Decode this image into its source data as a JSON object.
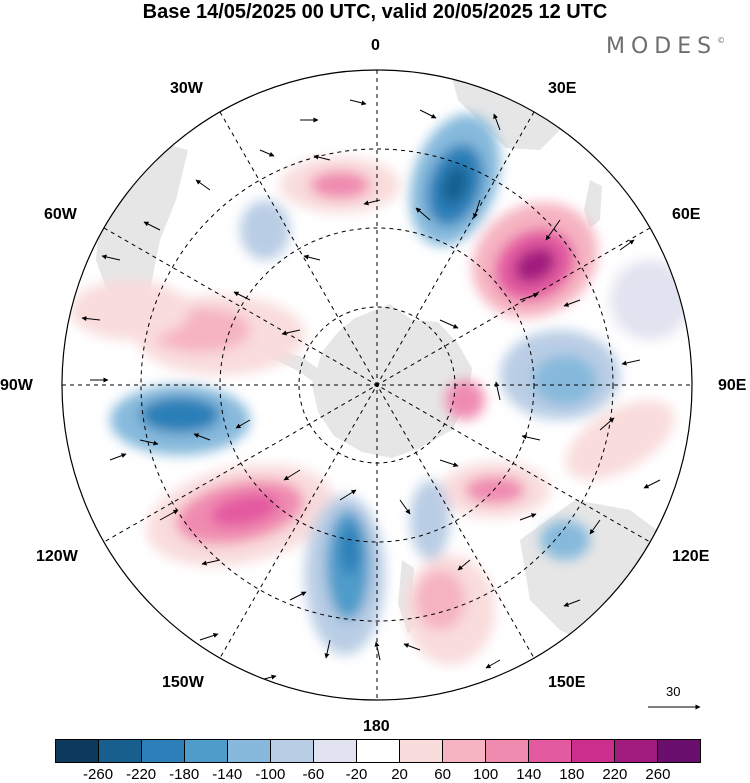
{
  "title": "Base 14/05/2025 00 UTC, valid 20/05/2025 12 UTC",
  "brand": "MODES",
  "brand_mark": "©",
  "map": {
    "projection": "south-polar-stereographic",
    "longitude_labels": {
      "top": "0",
      "bottom": "180",
      "left": "90W",
      "right": "90E",
      "upper_left": "30W",
      "upper_right": "30E",
      "left_upper": "60W",
      "right_upper": "60E",
      "left_lower": "120W",
      "right_lower": "120E",
      "lower_left": "150W",
      "lower_right": "150E"
    },
    "reference_vector_label": "30",
    "anomaly_centers": [
      {
        "sign": "negative",
        "lon_label": "~20E",
        "level": "-220"
      },
      {
        "sign": "positive",
        "lon_label": "~50E",
        "level": "220"
      },
      {
        "sign": "positive",
        "lon_label": "~10W",
        "level": "100"
      },
      {
        "sign": "positive",
        "lon_label": "~80W",
        "level": "100"
      },
      {
        "sign": "negative",
        "lon_label": "~100W",
        "level": "-220"
      },
      {
        "sign": "positive",
        "lon_label": "~140W",
        "level": "180"
      },
      {
        "sign": "negative",
        "lon_label": "~170W",
        "level": "-180"
      },
      {
        "sign": "negative",
        "lon_label": "~90E",
        "level": "-100"
      },
      {
        "sign": "positive",
        "lon_label": "~130E",
        "level": "100"
      },
      {
        "sign": "positive",
        "lon_label": "~160E",
        "level": "100"
      }
    ]
  },
  "colorbar": {
    "colors": [
      "#0d3a5c",
      "#195f8e",
      "#2c7fb8",
      "#4f9cca",
      "#86b9dc",
      "#b9cde5",
      "#e2e3f0",
      "#ffffff",
      "#f9dcdc",
      "#f6b3c1",
      "#f08bb0",
      "#e35aa0",
      "#cc2e8d",
      "#a11a7e",
      "#6b0f6e"
    ],
    "tick_labels": [
      "-260",
      "-220",
      "-180",
      "-140",
      "-100",
      "-60",
      "-20",
      "20",
      "60",
      "100",
      "140",
      "180",
      "220",
      "260"
    ]
  }
}
